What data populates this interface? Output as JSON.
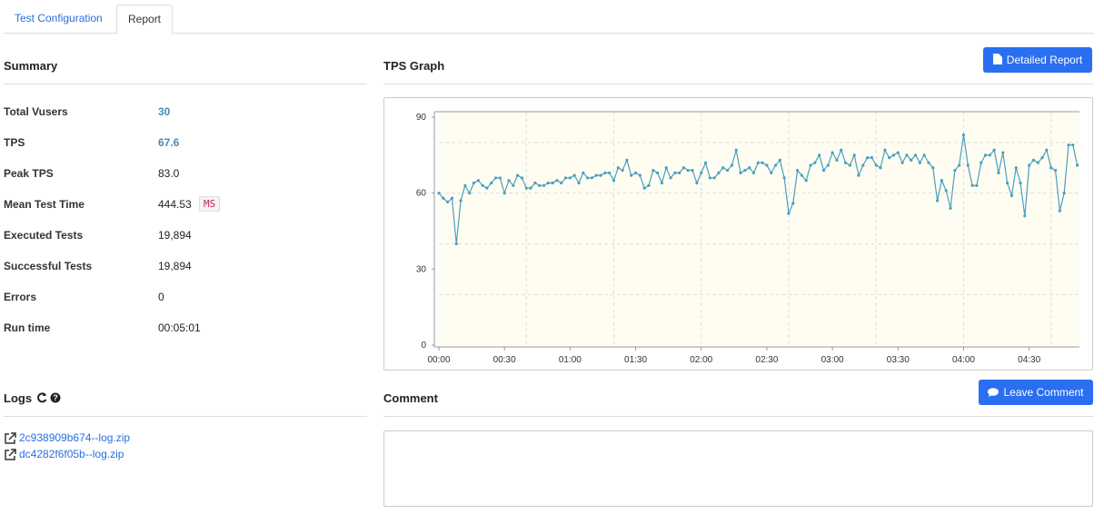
{
  "tabs": [
    "Test Configuration",
    "Report"
  ],
  "summary": {
    "title": "Summary",
    "rows": [
      {
        "label": "Total Vusers",
        "value": "30"
      },
      {
        "label": "TPS",
        "value": "67.6"
      },
      {
        "label": "Peak TPS",
        "value": "83.0"
      },
      {
        "label": "Mean Test Time",
        "value": "444.53",
        "unit": "MS"
      },
      {
        "label": "Executed Tests",
        "value": "19,894"
      },
      {
        "label": "Successful Tests",
        "value": "19,894"
      },
      {
        "label": "Errors",
        "value": "0"
      },
      {
        "label": "Run time",
        "value": "00:05:01"
      }
    ]
  },
  "logs": {
    "title": "Logs",
    "files": [
      "2c938909b674--log.zip",
      "dc4282f6f05b--log.zip"
    ]
  },
  "tps_graph": {
    "title": "TPS Graph",
    "button": "Detailed Report"
  },
  "comment": {
    "title": "Comment",
    "button": "Leave Comment"
  },
  "chart_data": {
    "type": "line",
    "color": "#4a9fbf",
    "background": "#fffdf2",
    "x": [
      0,
      2,
      4,
      6,
      8,
      10,
      12,
      14,
      16,
      18,
      20,
      22,
      24,
      26,
      28,
      30,
      32,
      34,
      36,
      38,
      40,
      42,
      44,
      46,
      48,
      50,
      52,
      54,
      56,
      58,
      60,
      62,
      64,
      66,
      68,
      70,
      72,
      74,
      76,
      78,
      80,
      82,
      84,
      86,
      88,
      90,
      92,
      94,
      96,
      98,
      100,
      102,
      104,
      106,
      108,
      110,
      112,
      114,
      116,
      118,
      120,
      122,
      124,
      126,
      128,
      130,
      132,
      134,
      136,
      138,
      140,
      142,
      144,
      146,
      148,
      150,
      152,
      154,
      156,
      158,
      160,
      162,
      164,
      166,
      168,
      170,
      172,
      174,
      176,
      178,
      180,
      182,
      184,
      186,
      188,
      190,
      192,
      194,
      196,
      198,
      200,
      202,
      204,
      206,
      208,
      210,
      212,
      214,
      216,
      218,
      220,
      222,
      224,
      226,
      228,
      230,
      232,
      234,
      236,
      238,
      240,
      242,
      244,
      246,
      248,
      250,
      252,
      254,
      256,
      258,
      260,
      262,
      264,
      266,
      268,
      270,
      272,
      274,
      276,
      278,
      280,
      282,
      284,
      286,
      288,
      290,
      292
    ],
    "values": [
      60,
      58,
      56.5,
      58,
      40,
      57,
      63,
      60,
      64,
      65,
      63,
      62,
      64,
      66,
      66,
      60,
      65,
      63,
      67,
      66,
      62,
      62,
      64,
      63,
      63,
      64,
      64,
      65,
      64,
      66,
      66,
      67,
      64,
      68,
      66,
      66,
      67,
      67,
      68,
      68,
      65,
      70,
      69,
      73,
      67,
      68,
      67,
      62,
      63,
      69,
      68,
      64,
      70,
      66,
      68,
      68,
      70,
      69,
      69,
      64,
      68,
      72,
      66,
      66,
      68,
      70,
      69,
      71,
      77,
      68,
      69,
      70,
      68,
      72,
      72,
      71,
      68,
      71,
      73,
      66,
      52,
      56,
      69,
      67,
      65,
      71,
      72,
      75,
      69,
      71,
      76,
      73,
      77,
      72,
      71,
      75,
      67,
      71,
      74,
      74,
      71,
      70,
      77,
      74,
      75,
      76,
      72,
      75,
      73,
      75,
      72,
      75,
      72,
      70,
      57,
      65,
      61,
      54,
      69,
      71,
      83,
      71,
      63,
      63,
      72,
      75,
      75,
      77,
      68,
      76,
      64,
      59,
      70,
      64,
      51,
      71,
      73,
      72,
      74,
      77,
      70,
      69,
      53,
      60,
      79,
      79,
      71
    ],
    "xlim": [
      0,
      293
    ],
    "ylim": [
      0,
      90
    ],
    "xticks": [
      {
        "value": 0,
        "label": "00:00"
      },
      {
        "value": 30,
        "label": "00:30"
      },
      {
        "value": 60,
        "label": "01:00"
      },
      {
        "value": 90,
        "label": "01:30"
      },
      {
        "value": 120,
        "label": "02:00"
      },
      {
        "value": 150,
        "label": "02:30"
      },
      {
        "value": 180,
        "label": "03:00"
      },
      {
        "value": 210,
        "label": "03:30"
      },
      {
        "value": 240,
        "label": "04:00"
      },
      {
        "value": 270,
        "label": "04:30"
      }
    ],
    "yticks": [
      0,
      30,
      60,
      90
    ],
    "xgrid": [
      40,
      80,
      120,
      160,
      200,
      240,
      280
    ],
    "ygrid": [
      20,
      40,
      60,
      80
    ]
  }
}
